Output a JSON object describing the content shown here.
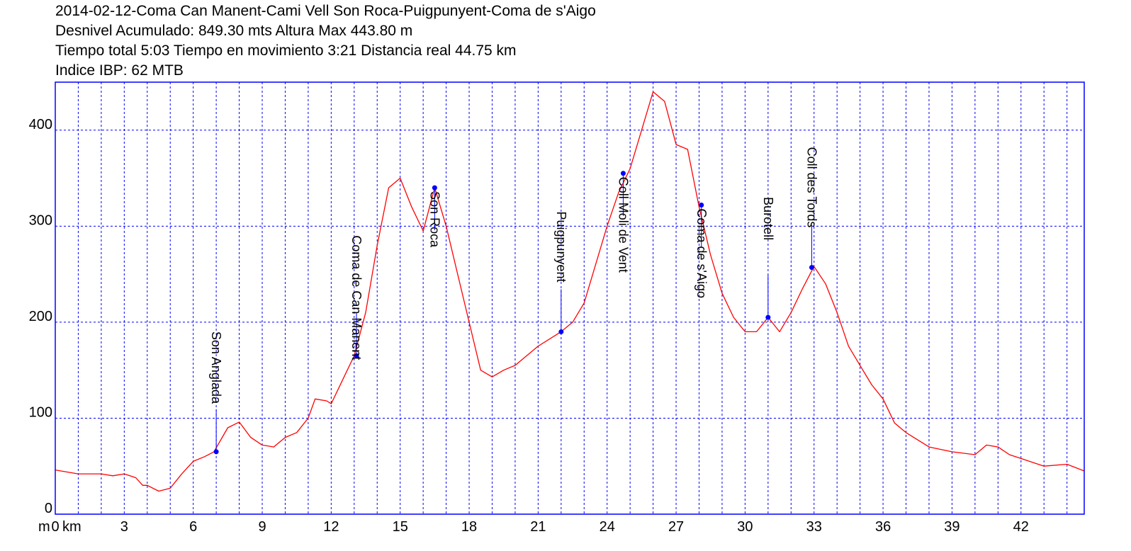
{
  "header": {
    "line1": "2014-02-12-Coma Can Manent-Cami Vell Son Roca-Puigpunyent-Coma de s'Aigo",
    "line2": "Desnivel Acumulado: 849.30 mts  Altura Max 443.80 m",
    "line3": "Tiempo total 5:03 Tiempo en movimiento 3:21 Distancia real 44.75 km",
    "line4": "Indice IBP: 62 MTB"
  },
  "colors": {
    "profile": "#ff0000",
    "grid": "#0000ff",
    "waypoint": "#0000ff",
    "frame": "#0000ff"
  },
  "chart_data": {
    "type": "line",
    "x_unit_label": "km",
    "y_unit_label": "m",
    "xlim": [
      0,
      44.75
    ],
    "ylim": [
      0,
      450
    ],
    "x_ticks": [
      0,
      3,
      6,
      9,
      12,
      15,
      18,
      21,
      24,
      27,
      30,
      33,
      36,
      39,
      42
    ],
    "y_ticks": [
      0,
      100,
      200,
      300,
      400
    ],
    "grid": true,
    "series": [
      {
        "x": [
          0,
          1,
          2,
          2.5,
          3,
          3.5,
          3.8,
          4,
          4.5,
          5,
          5.5,
          6,
          6.5,
          6.9,
          7.5,
          8,
          8.5,
          9,
          9.5,
          10,
          10.5,
          11,
          11.3,
          11.8,
          12,
          12.5,
          13,
          13.5,
          14,
          14.5,
          15,
          15.5,
          16,
          16.5,
          17,
          17.5,
          18,
          18.5,
          19,
          19.5,
          20,
          21,
          22,
          22.5,
          23,
          23.5,
          24,
          24.5,
          25,
          25.5,
          26,
          26.5,
          27,
          27.5,
          28,
          28.5,
          29,
          29.5,
          30,
          30.5,
          31,
          31.5,
          32,
          32.5,
          33,
          33.5,
          34,
          34.5,
          35,
          35.5,
          36,
          36.5,
          37,
          38,
          39,
          40,
          40.5,
          41,
          41.5,
          42,
          43,
          44,
          44.75
        ],
        "y": [
          46,
          42,
          42,
          40,
          42,
          38,
          30,
          30,
          24,
          27,
          42,
          55,
          60,
          65,
          90,
          96,
          80,
          72,
          70,
          80,
          85,
          100,
          120,
          118,
          115,
          140,
          165,
          210,
          280,
          340,
          350,
          320,
          295,
          340,
          300,
          250,
          200,
          150,
          143,
          150,
          155,
          175,
          190,
          200,
          220,
          260,
          300,
          335,
          360,
          400,
          440,
          430,
          385,
          380,
          320,
          270,
          230,
          205,
          190,
          190,
          205,
          190,
          210,
          235,
          258,
          240,
          210,
          175,
          155,
          135,
          120,
          95,
          85,
          70,
          65,
          62,
          72,
          70,
          62,
          58,
          50,
          52,
          45
        ]
      }
    ],
    "waypoints": [
      {
        "label": "Son Anglada",
        "x": 7.0,
        "y": 65
      },
      {
        "label": "Coma de Can Manent",
        "x": 13.1,
        "y": 165
      },
      {
        "label": "Son Roca",
        "x": 16.5,
        "y": 340
      },
      {
        "label": "Puigpunyent",
        "x": 22.0,
        "y": 190
      },
      {
        "label": "Coll Moli de Vent",
        "x": 24.7,
        "y": 355
      },
      {
        "label": "Coma de s'Aigo",
        "x": 28.1,
        "y": 322
      },
      {
        "label": "Burotell",
        "x": 31.0,
        "y": 205
      },
      {
        "label": "Coll des Tords",
        "x": 32.9,
        "y": 257
      }
    ]
  }
}
